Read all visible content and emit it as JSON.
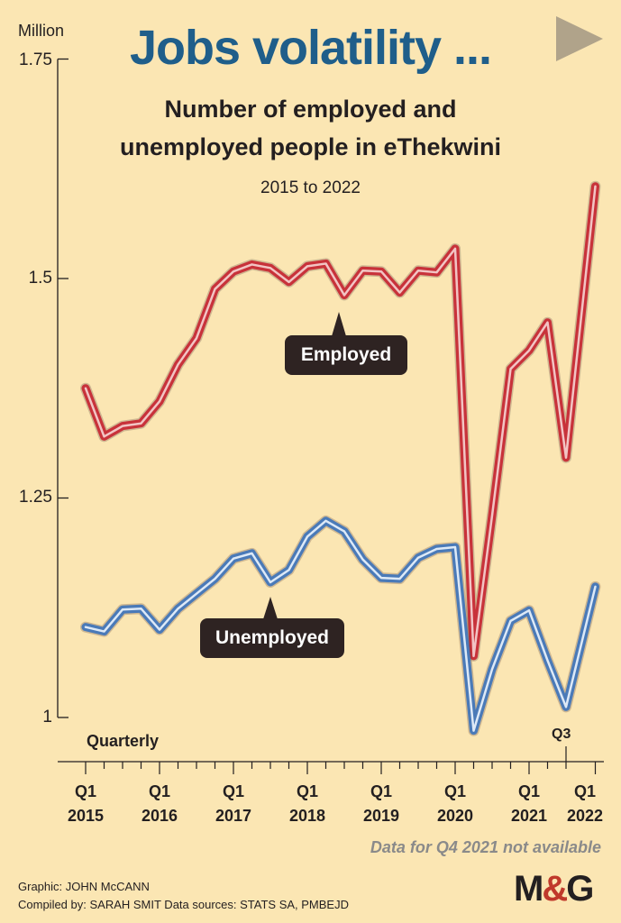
{
  "header": {
    "title": "Jobs volatility ...",
    "subtitle_line1": "Number of employed and",
    "subtitle_line2": "unemployed people in eThekwini",
    "date_range": "2015 to 2022"
  },
  "axis": {
    "unit": "Million",
    "y_ticks": [
      "1.75",
      "1.5",
      "1.25",
      "1"
    ],
    "period_label": "Quarterly",
    "q3_label": "Q3",
    "x_labels": [
      {
        "q": "Q1",
        "year": "2015"
      },
      {
        "q": "Q1",
        "year": "2016"
      },
      {
        "q": "Q1",
        "year": "2017"
      },
      {
        "q": "Q1",
        "year": "2018"
      },
      {
        "q": "Q1",
        "year": "2019"
      },
      {
        "q": "Q1",
        "year": "2020"
      },
      {
        "q": "Q1",
        "year": "2021"
      },
      {
        "q": "Q1",
        "year": "2022"
      }
    ]
  },
  "labels": {
    "employed": "Employed",
    "unemployed": "Unemployed"
  },
  "footer": {
    "note": "Data for Q4 2021 not available",
    "graphic_credit": "Graphic: JOHN McCANN",
    "compiled_credit": "Compiled by: SARAH SMIT  Data sources: STATS SA, PMBEJD",
    "logo_m": "M",
    "logo_amp": "&",
    "logo_g": "G"
  },
  "colors": {
    "background": "#fbe6b3",
    "employed": "#c8323a",
    "unemployed": "#4a7ab8",
    "title": "#1f5e8a"
  },
  "chart_data": {
    "type": "line",
    "x": [
      "2015 Q1",
      "2015 Q2",
      "2015 Q3",
      "2015 Q4",
      "2016 Q1",
      "2016 Q2",
      "2016 Q3",
      "2016 Q4",
      "2017 Q1",
      "2017 Q2",
      "2017 Q3",
      "2017 Q4",
      "2018 Q1",
      "2018 Q2",
      "2018 Q3",
      "2018 Q4",
      "2019 Q1",
      "2019 Q2",
      "2019 Q3",
      "2019 Q4",
      "2020 Q1",
      "2020 Q2",
      "2020 Q3",
      "2020 Q4",
      "2021 Q1",
      "2021 Q2",
      "2021 Q3",
      "2022 Q1"
    ],
    "series": [
      {
        "name": "Employed",
        "values": [
          1.375,
          1.32,
          1.332,
          1.335,
          1.36,
          1.402,
          1.432,
          1.488,
          1.508,
          1.516,
          1.512,
          1.496,
          1.514,
          1.517,
          1.481,
          1.509,
          1.508,
          1.484,
          1.509,
          1.507,
          1.534,
          1.07,
          1.23,
          1.397,
          1.418,
          1.45,
          1.296,
          1.605
        ]
      },
      {
        "name": "Unemployed",
        "values": [
          1.103,
          1.098,
          1.123,
          1.124,
          1.1,
          1.124,
          1.141,
          1.158,
          1.181,
          1.187,
          1.154,
          1.168,
          1.206,
          1.224,
          1.212,
          1.18,
          1.159,
          1.158,
          1.182,
          1.192,
          1.194,
          0.985,
          1.055,
          1.11,
          1.122,
          1.065,
          1.012,
          1.149
        ]
      }
    ],
    "ylim": [
      1,
      1.75
    ],
    "y_ticks": [
      1,
      1.25,
      1.5,
      1.75
    ],
    "ylabel": "Million",
    "title": "Jobs volatility ..."
  }
}
